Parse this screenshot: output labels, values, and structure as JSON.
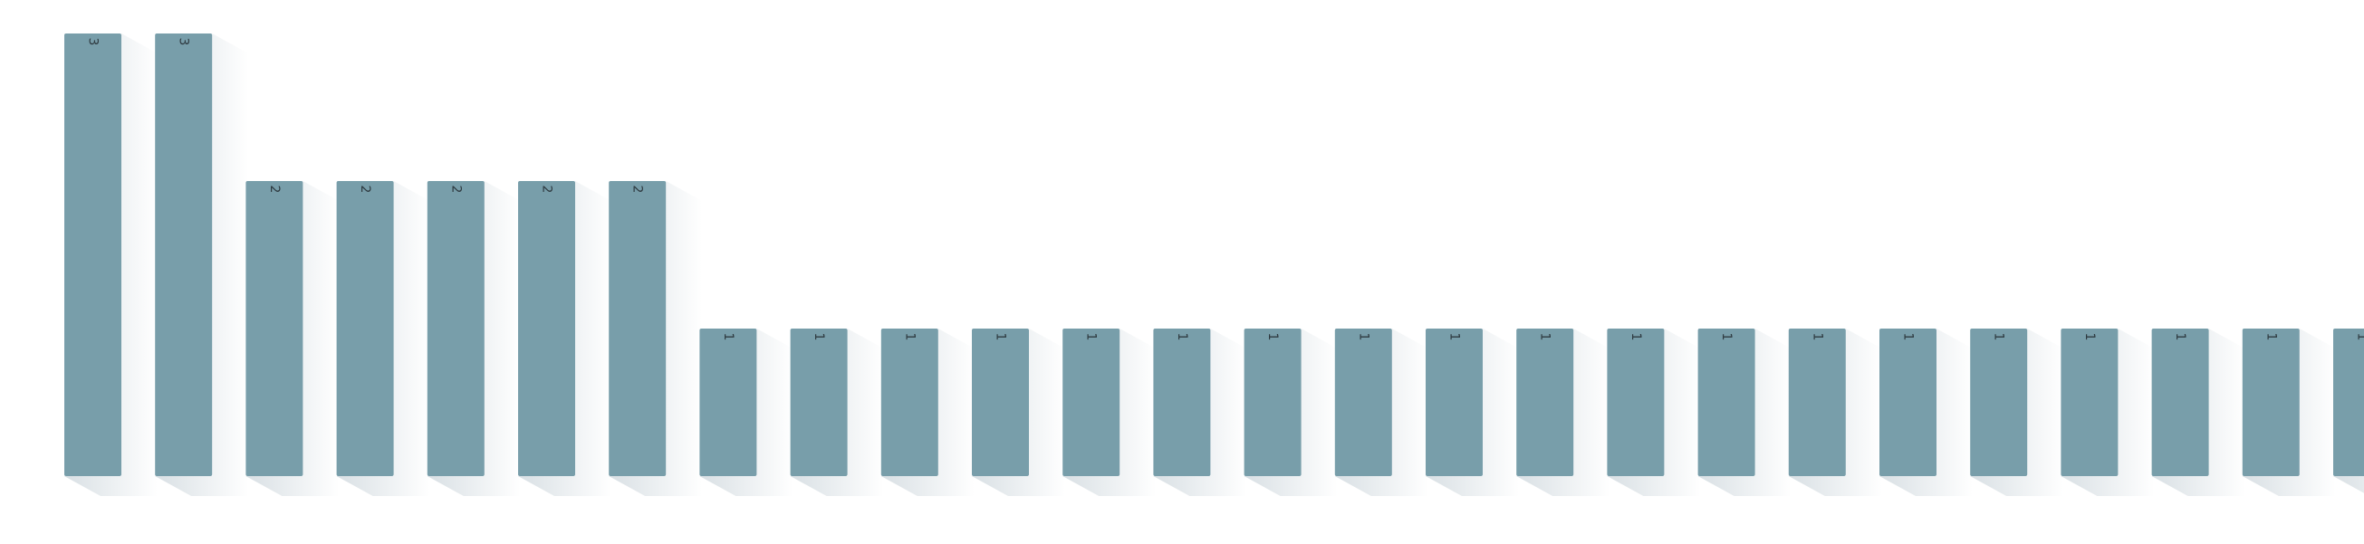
{
  "chart_data": {
    "type": "bar",
    "title": "",
    "xlabel": "",
    "ylabel": "",
    "ylim": [
      0,
      3
    ],
    "grid": false,
    "legend": "none",
    "bar_color": "#789eaa",
    "shadow_color": "#c8d3da",
    "values": [
      3,
      3,
      2,
      2,
      2,
      2,
      2,
      1,
      1,
      1,
      1,
      1,
      1,
      1,
      1,
      1,
      1,
      1,
      1,
      1,
      1,
      1,
      1,
      1,
      1,
      1
    ],
    "labels": [
      "3",
      "3",
      "2",
      "2",
      "2",
      "2",
      "2",
      "1",
      "1",
      "1",
      "1",
      "1",
      "1",
      "1",
      "1",
      "1",
      "1",
      "1",
      "1",
      "1",
      "1",
      "1",
      "1",
      "1",
      "1",
      "1"
    ]
  }
}
